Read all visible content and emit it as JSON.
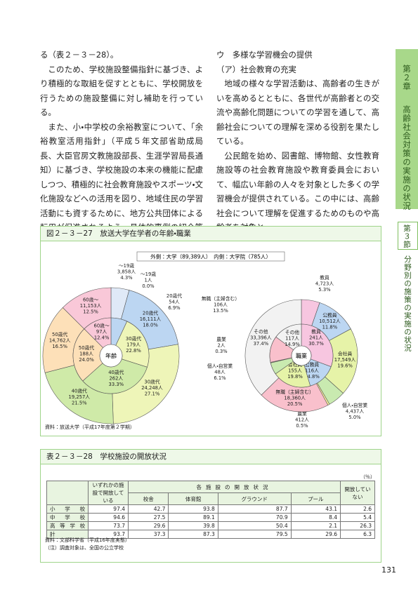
{
  "column_left": {
    "paragraphs": [
      "る（表２－３－28）。",
      "このため、学校施設整備指針に基づき、より積極的な取組を促すとともに、学校開放を行うための施設整備に対し補助を行っている。",
      "また、小・中学校の余裕教室について、「余裕教室活用指針」（平成５年文部省助成局長、大臣官房文教施設部長、生涯学習局長通知）に基づき、学校施設の本来の機能に配慮しつつ、積極的に社会教育施設やスポーツ・文化施設などへの活用を図り、地域住民の学習活動にも資するために、地方公共団体による転用が促進されるよう、具体的事例の紹介等を行っている。"
    ]
  },
  "column_right": {
    "heading": "ウ　多様な学習機会の提供",
    "subheading": "（ア）社会教育の充実",
    "paragraphs": [
      "地域の様々な学習活動は、高齢者の生きがいを高めるとともに、各世代が高齢者との交流や高齢化問題についての学習を通して、高齢社会についての理解を深める役割を果たしている。",
      "公民館を始め、図書館、博物館、女性教育施設等の社会教育施設や教育委員会において、幅広い年齢の人々を対象とした多くの学習機会が提供されている。この中には、高齢社会について理解を促進するためのものや高齢者を対象と"
    ]
  },
  "sidebar": {
    "chapter": "第２章",
    "chapter_title": "高齢社会対策の実施の状況",
    "section": "第３節",
    "section_title": "分野別の施策の実施の状況"
  },
  "figure": {
    "title": "図２－３－27　放送大学在学者の年齢・職業",
    "legend": "外側：大学（89,389人）　内側：大学院（785人）",
    "source": "資料：放送大学（平成17年度第２学期）",
    "charts": [
      {
        "type": "pie",
        "center_label": "年齢",
        "categories": [
          "～19歳",
          "20歳代",
          "30歳代",
          "40歳代",
          "50歳代",
          "60歳～"
        ],
        "colors": [
          "#dfe9f7",
          "#bcd6f2",
          "#eef5b8",
          "#cfeaa8",
          "#fde0b8",
          "#f9c8d8"
        ],
        "outer": {
          "counts": [
            "3,858人",
            "16,111人",
            "24,248人",
            "19,257人",
            "14,762人",
            "11,153人"
          ],
          "values": [
            4.3,
            18.0,
            27.1,
            21.5,
            16.5,
            12.5
          ],
          "value_labels": [
            "4.3%",
            "18.0%",
            "27.1%",
            "21.5%",
            "16.5%",
            "12.5%"
          ]
        },
        "inner": {
          "counts": [
            "1人",
            "54人",
            "179人",
            "262人",
            "188人",
            "97人"
          ],
          "values": [
            0.0,
            6.9,
            22.8,
            33.3,
            24.0,
            12.4
          ],
          "value_labels": [
            "0.0%",
            "6.9%",
            "22.8%",
            "33.3%",
            "24.0%",
            "12.4%"
          ]
        }
      },
      {
        "type": "pie",
        "center_label": "職業",
        "categories": [
          "教員",
          "公務員",
          "会社員",
          "個人・自営業",
          "農業",
          "無職（主婦含む）",
          "その他"
        ],
        "colors": [
          "#f7c6e0",
          "#bcd6f2",
          "#e6f3a8",
          "#c9eab0",
          "#fff3a0",
          "#f9c0cc",
          "#f2f2f2"
        ],
        "outer": {
          "counts": [
            "4,723人",
            "10,512人",
            "17,549人",
            "4,437人",
            "412人",
            "18,360人",
            "33,396人"
          ],
          "values": [
            5.3,
            11.8,
            19.6,
            5.0,
            0.5,
            20.5,
            37.4
          ],
          "value_labels": [
            "5.3%",
            "11.8%",
            "19.6%",
            "5.0%",
            "0.5%",
            "20.5%",
            "37.4%"
          ]
        },
        "inner": {
          "counts": [
            "241人",
            "116人",
            "155人",
            "48人",
            "2人",
            "106人",
            "117人"
          ],
          "values": [
            30.7,
            14.8,
            19.8,
            6.1,
            0.3,
            13.5,
            14.9
          ],
          "value_labels": [
            "30.7%",
            "14.8%",
            "19.8%",
            "6.1%",
            "0.3%",
            "13.5%",
            "14.9%"
          ]
        }
      }
    ]
  },
  "table": {
    "title": "表２－３－28　学校施設の開放状況",
    "unit": "（％）",
    "header_any": "いずれかの施設で開放している",
    "header_group": "各施設の開放状況",
    "facilities": [
      "校舎",
      "体育館",
      "グラウンド",
      "プール"
    ],
    "header_none": "開放していない",
    "rows": [
      [
        "小学校",
        97.4,
        42.7,
        93.8,
        87.7,
        43.1,
        2.6
      ],
      [
        "中学校",
        94.6,
        27.5,
        89.1,
        70.9,
        8.4,
        5.4
      ],
      [
        "高等学校",
        73.7,
        29.6,
        39.8,
        50.4,
        2.1,
        26.3
      ],
      [
        "計",
        93.7,
        37.3,
        87.3,
        79.5,
        29.6,
        6.3
      ]
    ],
    "source": "資料：文部科学省（平成16年度実態）",
    "note": "（注）調査対象は、全国の公立学校"
  },
  "page_number": "131"
}
